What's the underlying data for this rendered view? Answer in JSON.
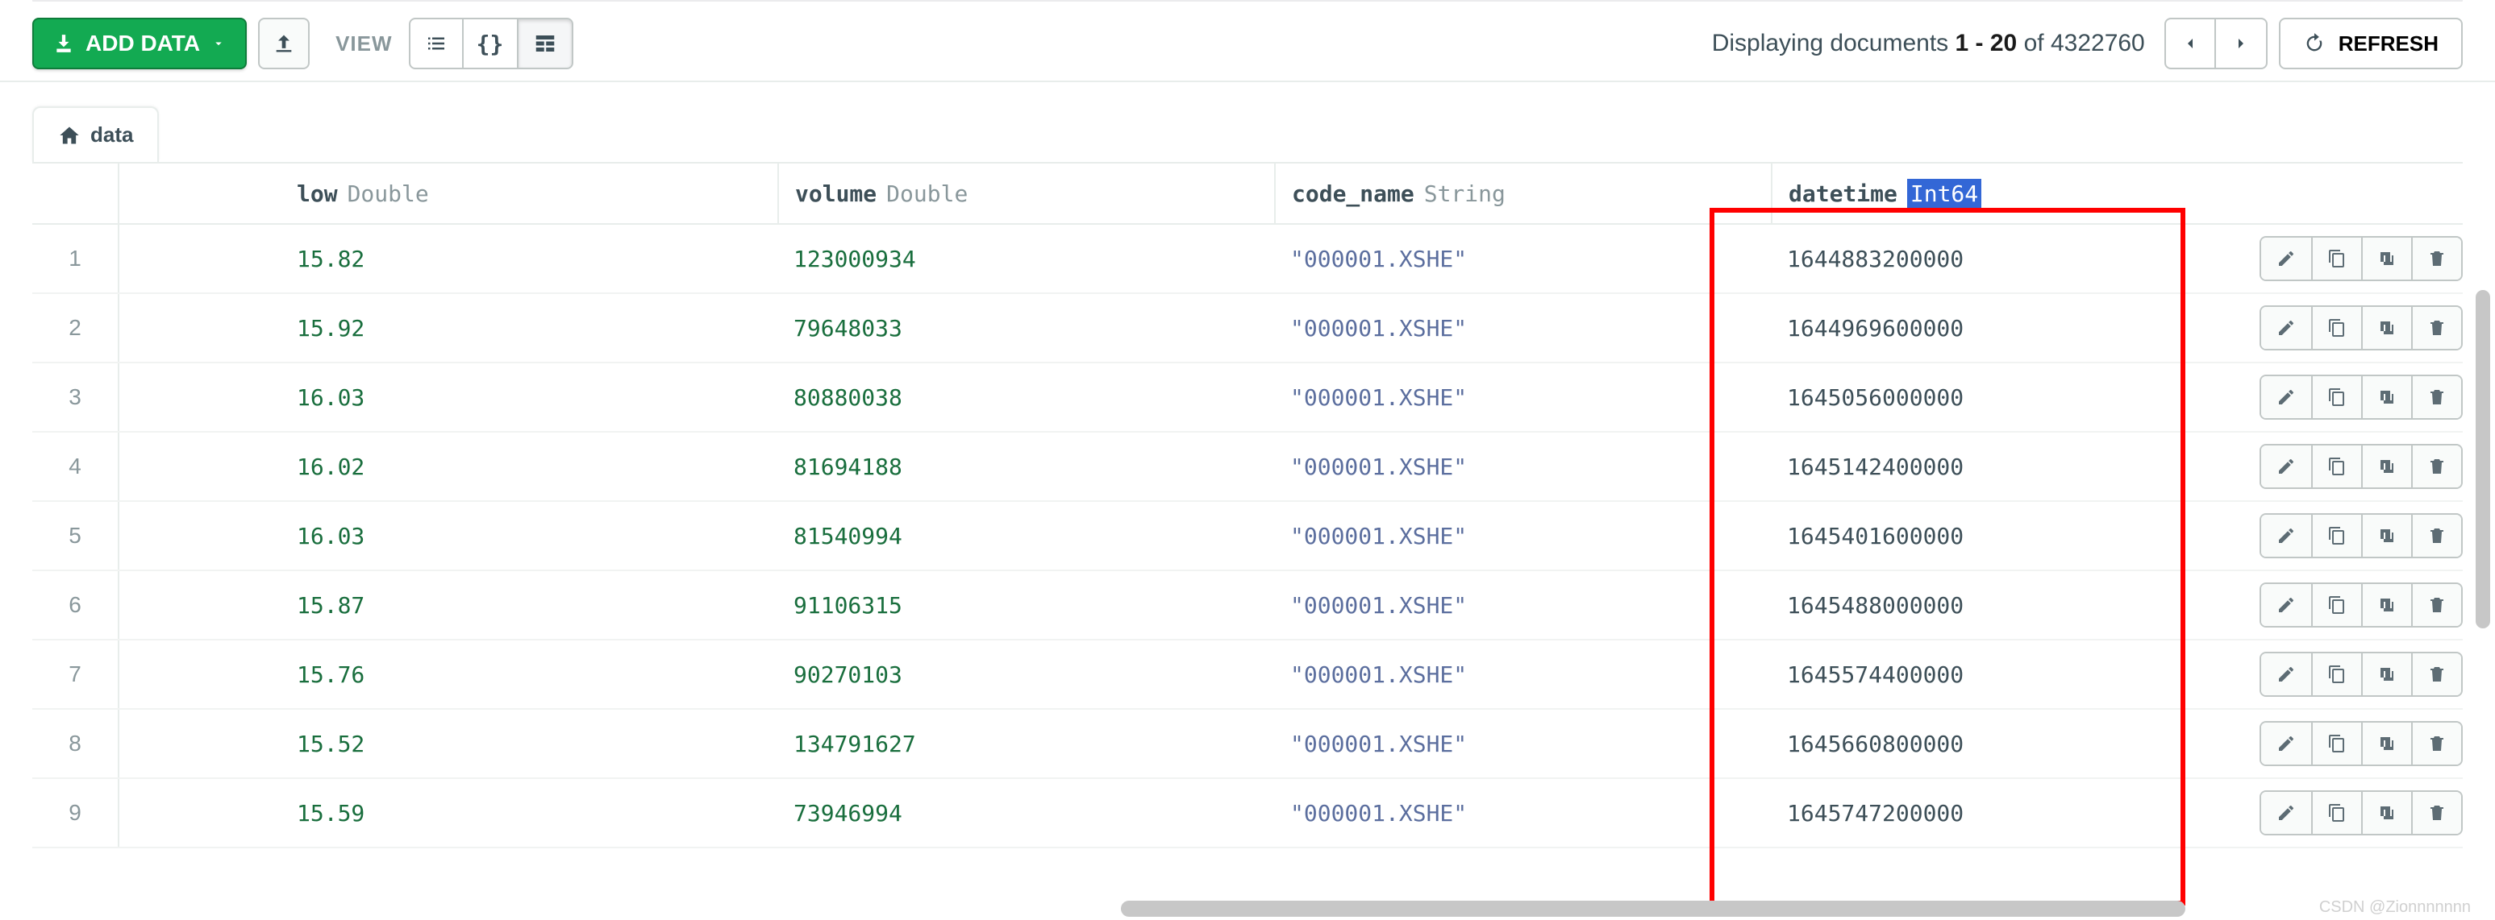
{
  "toolbar": {
    "add_data_label": "ADD DATA",
    "view_label": "VIEW",
    "refresh_label": "REFRESH"
  },
  "pagination": {
    "prefix": "Displaying documents",
    "range": "1 - 20",
    "of": "of",
    "total": "4322760"
  },
  "tab": {
    "label": "data"
  },
  "columns": [
    {
      "name": "low",
      "type": "Double"
    },
    {
      "name": "volume",
      "type": "Double"
    },
    {
      "name": "code_name",
      "type": "String"
    },
    {
      "name": "datetime",
      "type": "Int64",
      "highlighted": true
    }
  ],
  "rows": [
    {
      "n": "1",
      "low": "15.82",
      "volume": "123000934",
      "code_name": "\"000001.XSHE\"",
      "datetime": "1644883200000"
    },
    {
      "n": "2",
      "low": "15.92",
      "volume": "79648033",
      "code_name": "\"000001.XSHE\"",
      "datetime": "1644969600000"
    },
    {
      "n": "3",
      "low": "16.03",
      "volume": "80880038",
      "code_name": "\"000001.XSHE\"",
      "datetime": "1645056000000"
    },
    {
      "n": "4",
      "low": "16.02",
      "volume": "81694188",
      "code_name": "\"000001.XSHE\"",
      "datetime": "1645142400000"
    },
    {
      "n": "5",
      "low": "16.03",
      "volume": "81540994",
      "code_name": "\"000001.XSHE\"",
      "datetime": "1645401600000"
    },
    {
      "n": "6",
      "low": "15.87",
      "volume": "91106315",
      "code_name": "\"000001.XSHE\"",
      "datetime": "1645488000000"
    },
    {
      "n": "7",
      "low": "15.76",
      "volume": "90270103",
      "code_name": "\"000001.XSHE\"",
      "datetime": "1645574400000"
    },
    {
      "n": "8",
      "low": "15.52",
      "volume": "134791627",
      "code_name": "\"000001.XSHE\"",
      "datetime": "1645660800000"
    },
    {
      "n": "9",
      "low": "15.59",
      "volume": "73946994",
      "code_name": "\"000001.XSHE\"",
      "datetime": "1645747200000"
    }
  ],
  "colors": {
    "green_btn": "#13aa52",
    "number_green": "#196e3d",
    "string_blue": "#5b6e9e",
    "highlight_blue": "#3367d6",
    "highlight_red": "#ff0000",
    "border": "#e8edeb",
    "muted": "#89979b"
  },
  "watermark": "CSDN @Zionnnnnnn"
}
